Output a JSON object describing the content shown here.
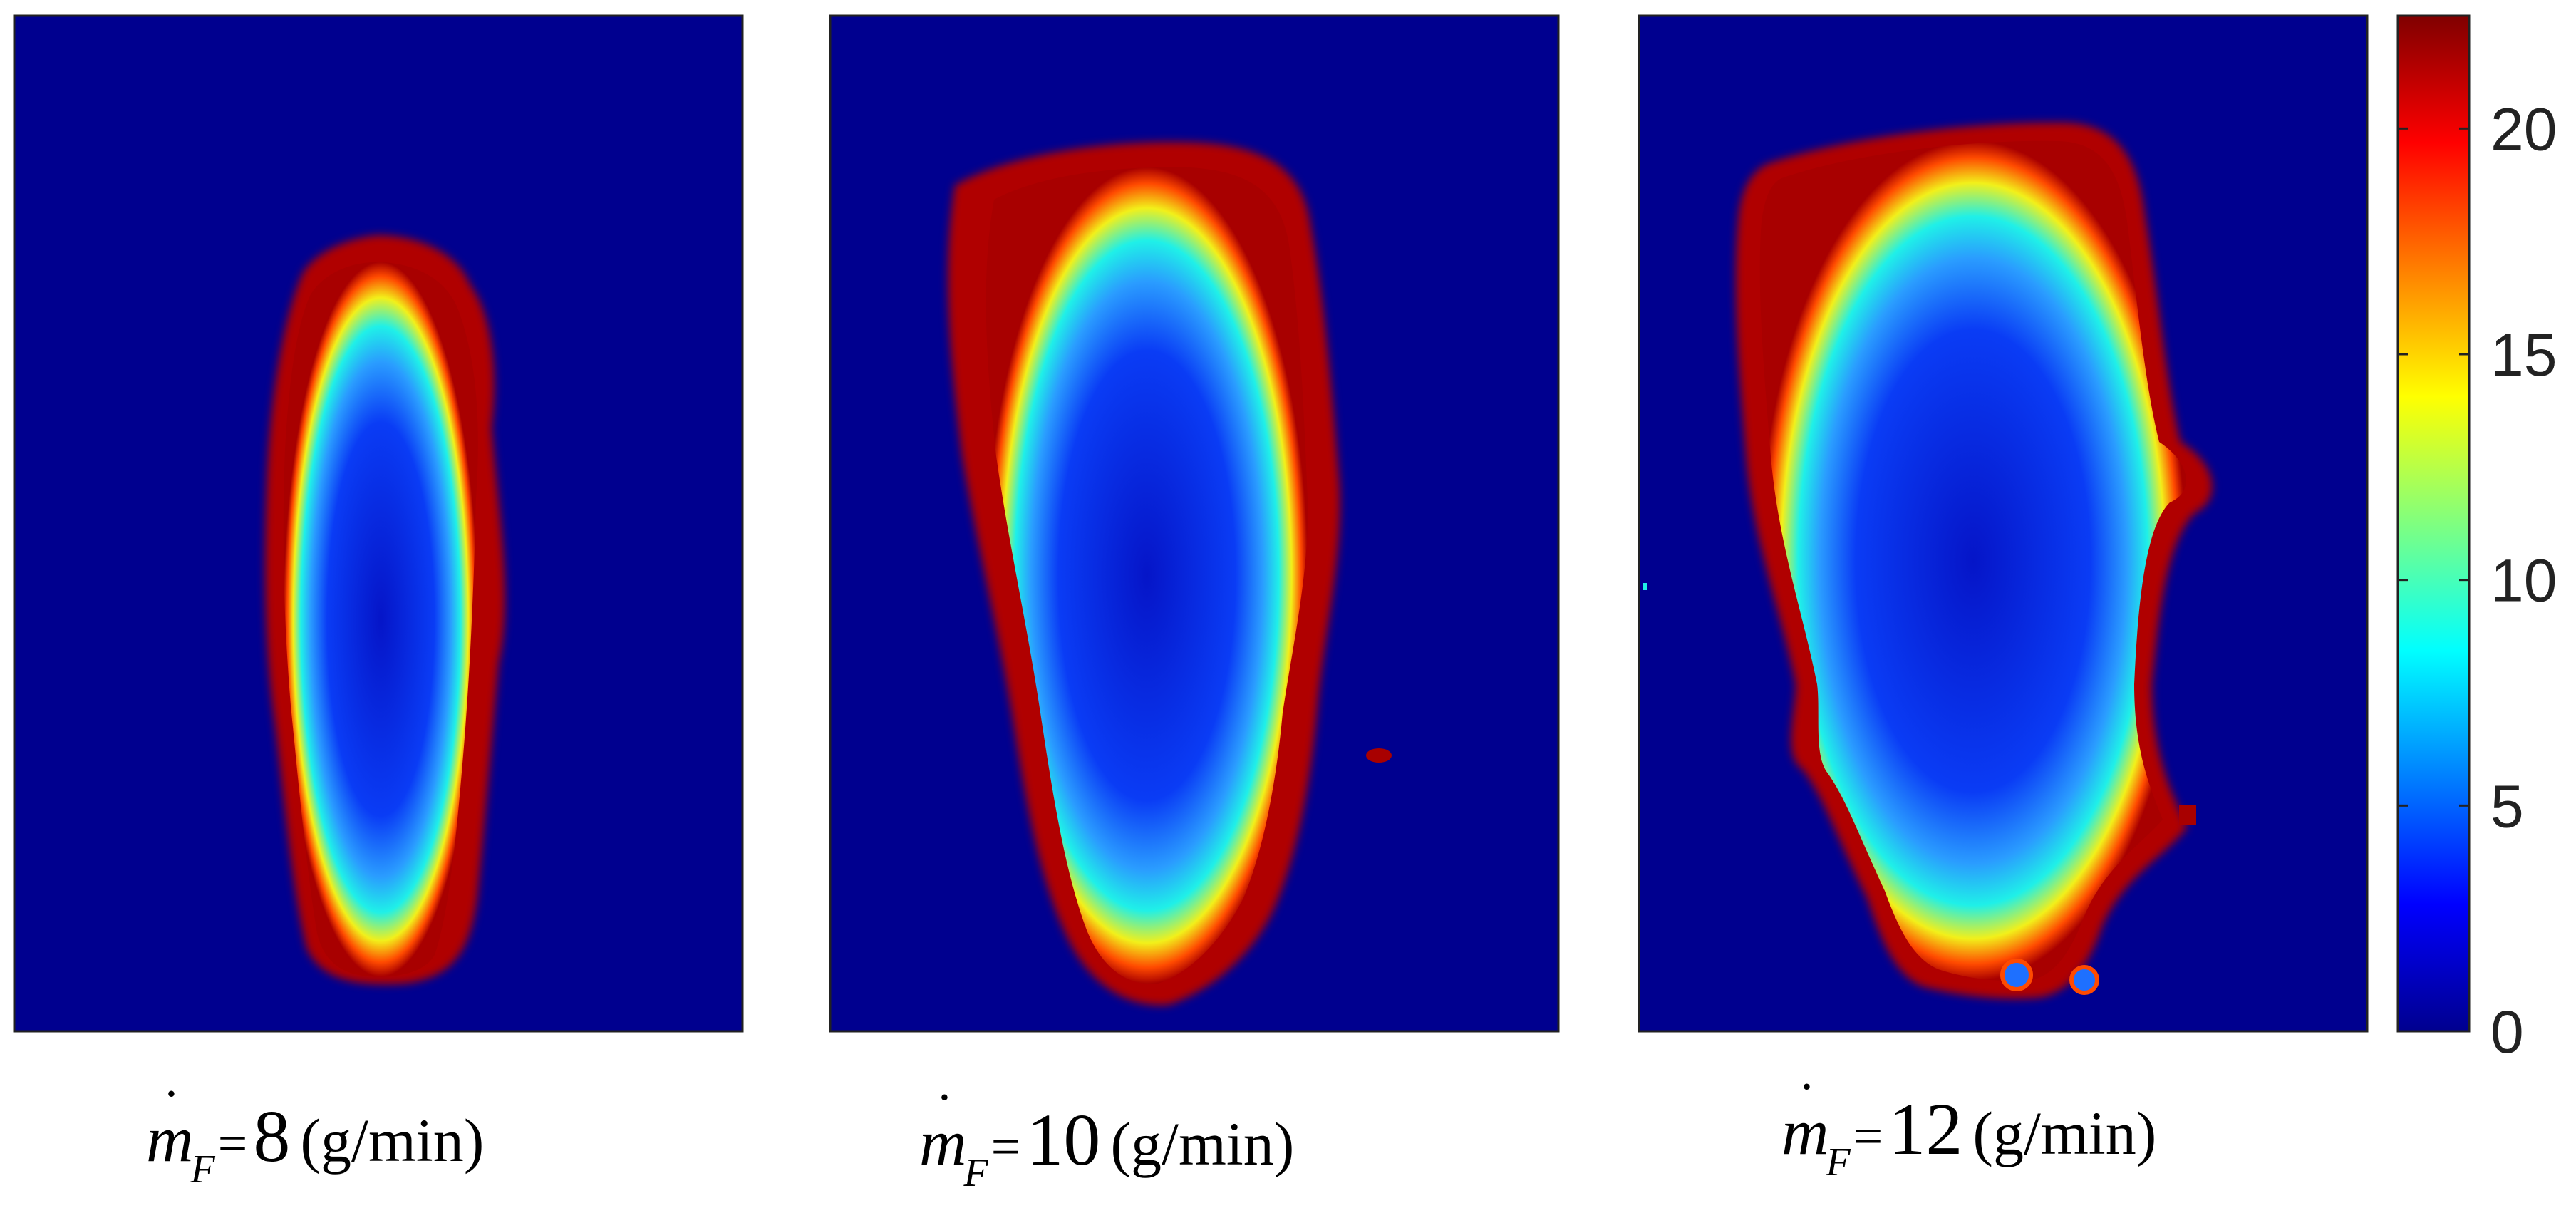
{
  "chart_data": {
    "type": "heatmap",
    "colormap": "jet",
    "colorbar": {
      "range": [
        0,
        22.5
      ],
      "ticks": [
        0,
        5,
        10,
        15,
        20
      ],
      "tick_labels": [
        "0",
        "5",
        "10",
        "15",
        "20"
      ],
      "placement": "right"
    },
    "panels": [
      {
        "symbol": "m",
        "subscript": "F",
        "equals": "=",
        "value": "8",
        "unit": "(g/min)"
      },
      {
        "symbol": "m",
        "subscript": "F",
        "equals": "=",
        "value": "10",
        "unit": "(g/min)"
      },
      {
        "symbol": "m",
        "subscript": "F",
        "equals": "=",
        "value": "12",
        "unit": "(g/min)"
      }
    ],
    "background_value": 0,
    "grid": false,
    "legend": "none"
  }
}
